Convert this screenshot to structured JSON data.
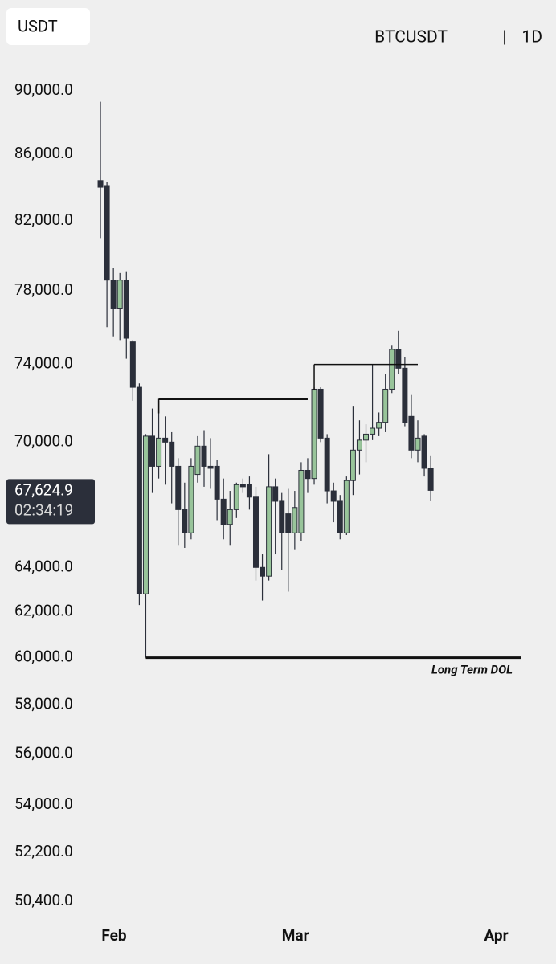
{
  "chart_data": {
    "type": "candlestick",
    "header": {
      "currency": "USDT",
      "symbol": "BTCUSDT",
      "separator": "|",
      "interval": "1D"
    },
    "log_scale": true,
    "ylim": [
      50400,
      90000
    ],
    "yticks": [
      {
        "value": 90000,
        "label": "90,000.0"
      },
      {
        "value": 86000,
        "label": "86,000.0"
      },
      {
        "value": 82000,
        "label": "82,000.0"
      },
      {
        "value": 78000,
        "label": "78,000.0"
      },
      {
        "value": 74000,
        "label": "74,000.0"
      },
      {
        "value": 70000,
        "label": "70,000.0"
      },
      {
        "value": 64000,
        "label": "64,000.0"
      },
      {
        "value": 62000,
        "label": "62,000.0"
      },
      {
        "value": 60000,
        "label": "60,000.0"
      },
      {
        "value": 58000,
        "label": "58,000.0"
      },
      {
        "value": 56000,
        "label": "56,000.0"
      },
      {
        "value": 54000,
        "label": "54,000.0"
      },
      {
        "value": 52200,
        "label": "52,200.0"
      },
      {
        "value": 50400,
        "label": "50,400.0"
      }
    ],
    "xlim": [
      -0.625,
      65.5
    ],
    "xticks": [
      {
        "value": 2.1,
        "label": "Feb"
      },
      {
        "value": 30.1,
        "label": "Mar"
      },
      {
        "value": 61.1,
        "label": "Apr"
      }
    ],
    "up_color": "#98c49a",
    "down_color": "#2b2f3a",
    "open": [
      84400,
      84100,
      78600,
      77000,
      78600,
      75200,
      72800,
      62800,
      70300,
      68800,
      70200,
      70000,
      68800,
      66700,
      65600,
      68400,
      69800,
      68800,
      68800,
      67200,
      66000,
      66700,
      67900,
      67900,
      67300,
      64000,
      63600,
      67800,
      67100,
      66500,
      65600,
      65600,
      68600,
      68200,
      72700,
      70200,
      67600,
      67100,
      65600,
      68100,
      69600,
      70100,
      70400,
      70700,
      71000,
      72700,
      74800,
      73800,
      71300,
      69600,
      70300,
      68700
    ],
    "high": [
      89300,
      84300,
      79300,
      79000,
      79100,
      75300,
      73000,
      70400,
      71700,
      72100,
      71300,
      70500,
      69200,
      68000,
      69200,
      70300,
      70600,
      70200,
      69100,
      68200,
      67600,
      68000,
      68200,
      68300,
      67800,
      64600,
      69400,
      68200,
      67500,
      67700,
      67600,
      69000,
      69200,
      72800,
      72800,
      70400,
      68000,
      67400,
      68300,
      71800,
      71100,
      70900,
      74000,
      71500,
      73500,
      75000,
      75800,
      74400,
      72400,
      71100,
      70400,
      69300
    ],
    "low": [
      81000,
      76000,
      75500,
      75300,
      74300,
      72100,
      62300,
      60000,
      67500,
      68200,
      67900,
      67000,
      65000,
      64900,
      65300,
      68000,
      67800,
      67700,
      66200,
      65300,
      65000,
      66300,
      67500,
      66700,
      63400,
      62500,
      63400,
      64600,
      63900,
      62900,
      64800,
      65200,
      67500,
      67900,
      70000,
      67000,
      66100,
      65300,
      65500,
      67400,
      68400,
      69000,
      70100,
      70300,
      70500,
      72500,
      73500,
      70800,
      69200,
      69000,
      68300,
      67100
    ],
    "close": [
      84000,
      78600,
      77000,
      78600,
      75400,
      72800,
      62800,
      70300,
      68800,
      70200,
      70000,
      68800,
      66700,
      65600,
      68800,
      69800,
      68800,
      68700,
      67200,
      66000,
      66700,
      67900,
      67800,
      67300,
      64000,
      63600,
      67800,
      67100,
      65600,
      65600,
      66800,
      68600,
      68200,
      72700,
      70200,
      67600,
      67100,
      65600,
      68100,
      69600,
      70100,
      70400,
      70700,
      71000,
      72700,
      74800,
      73800,
      71000,
      69600,
      70200,
      68700,
      67624.9
    ],
    "levels": [
      {
        "value": 72200,
        "x1": 9,
        "x2": 32
      },
      {
        "value": 74000,
        "x1": 33,
        "x2": 49
      },
      {
        "value": 60000,
        "x1": 7,
        "x2": 65,
        "label": "Long Term DOL"
      }
    ],
    "last_price": {
      "value": 67624.9,
      "label": "67,624.9"
    },
    "countdown": "02:34:19"
  }
}
